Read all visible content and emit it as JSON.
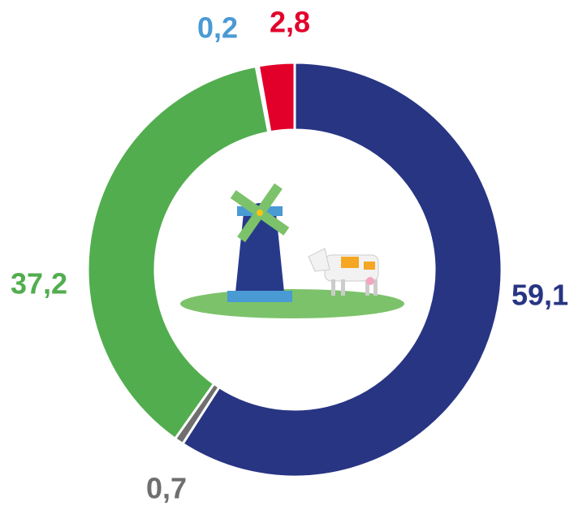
{
  "chart_data": {
    "type": "donut",
    "categories": [
      null,
      null,
      null,
      null,
      null
    ],
    "values": [
      59.1,
      0.7,
      37.2,
      0.2,
      2.8
    ],
    "value_labels": [
      "59,1",
      "0,7",
      "37,2",
      "0,2",
      "2,8"
    ],
    "colors": [
      "#283583",
      "#6f6f6f",
      "#52ad4f",
      "#4a9ad4",
      "#e2002a"
    ]
  }
}
